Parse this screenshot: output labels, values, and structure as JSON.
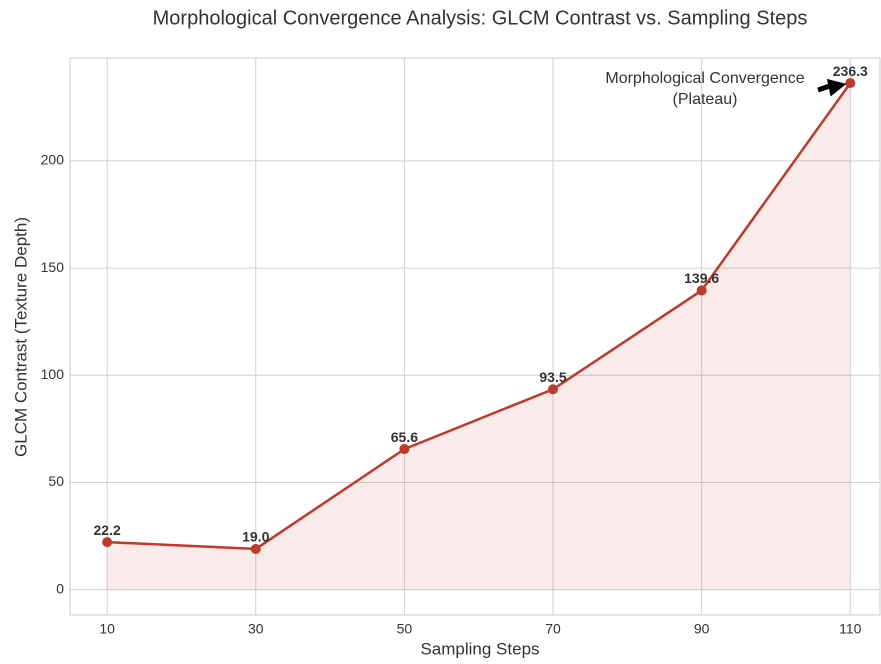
{
  "chart_data": {
    "type": "line",
    "title": "Morphological Convergence Analysis: GLCM Contrast vs. Sampling Steps",
    "xlabel": "Sampling Steps",
    "ylabel": "GLCM Contrast (Texture Depth)",
    "x": [
      10,
      30,
      50,
      70,
      90,
      110
    ],
    "series": [
      {
        "name": "GLCM Contrast",
        "color": "#c0392b",
        "values": [
          22.2,
          19.0,
          65.6,
          93.5,
          139.6,
          236.3
        ],
        "value_labels": [
          "22.2",
          "19.0",
          "65.6",
          "93.5",
          "139.6",
          "236.3"
        ]
      }
    ],
    "xlim": [
      5,
      114
    ],
    "xticks": [
      10,
      30,
      50,
      70,
      90,
      110
    ],
    "ylim": [
      -11.8,
      248
    ],
    "yticks": [
      0,
      50,
      100,
      150,
      200
    ],
    "grid": true,
    "fill": true,
    "annotation": {
      "lines": [
        "Morphological Convergence",
        "(Plateau)"
      ]
    }
  }
}
